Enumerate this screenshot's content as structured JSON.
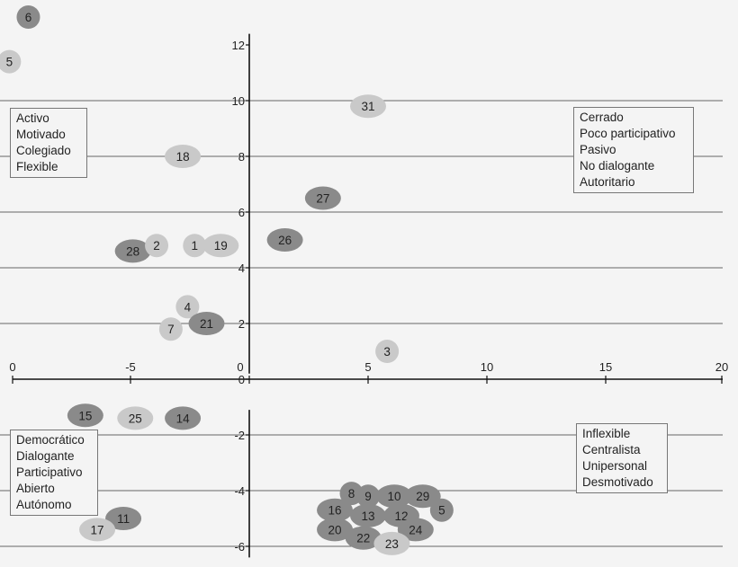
{
  "chart_data": {
    "type": "scatter",
    "x_ticks": [
      "0",
      "-5",
      "0",
      "5",
      "10",
      "15",
      "20"
    ],
    "y_ticks": [
      "12",
      "10",
      "8",
      "6",
      "4",
      "2",
      "0",
      "-2",
      "-4",
      "-6"
    ],
    "xlim": [
      -10,
      20
    ],
    "ylim": [
      -6,
      12
    ],
    "grid": true,
    "colors": {
      "dark": "#8a8a8a",
      "light": "#c9c9c9",
      "grid": "#666666",
      "axis": "#111111"
    },
    "points": [
      {
        "label": "6",
        "x": -9.3,
        "y": 13.0,
        "shade": "dark"
      },
      {
        "label": "5",
        "x": -10.1,
        "y": 11.4,
        "shade": "light"
      },
      {
        "label": "31",
        "x": 5.0,
        "y": 9.8,
        "shade": "light"
      },
      {
        "label": "18",
        "x": -2.8,
        "y": 8.0,
        "shade": "light"
      },
      {
        "label": "27",
        "x": 3.1,
        "y": 6.5,
        "shade": "dark"
      },
      {
        "label": "26",
        "x": 1.5,
        "y": 5.0,
        "shade": "dark"
      },
      {
        "label": "28",
        "x": -4.9,
        "y": 4.6,
        "shade": "dark"
      },
      {
        "label": "2",
        "x": -3.9,
        "y": 4.8,
        "shade": "light"
      },
      {
        "label": "1",
        "x": -2.3,
        "y": 4.8,
        "shade": "light"
      },
      {
        "label": "19",
        "x": -1.2,
        "y": 4.8,
        "shade": "light"
      },
      {
        "label": "4",
        "x": -2.6,
        "y": 2.6,
        "shade": "light"
      },
      {
        "label": "21",
        "x": -1.8,
        "y": 2.0,
        "shade": "dark"
      },
      {
        "label": "7",
        "x": -3.3,
        "y": 1.8,
        "shade": "light"
      },
      {
        "label": "3",
        "x": 5.8,
        "y": 1.0,
        "shade": "light"
      },
      {
        "label": "15",
        "x": -6.9,
        "y": -1.3,
        "shade": "dark"
      },
      {
        "label": "25",
        "x": -4.8,
        "y": -1.4,
        "shade": "light"
      },
      {
        "label": "14",
        "x": -2.8,
        "y": -1.4,
        "shade": "dark"
      },
      {
        "label": "11",
        "x": -5.3,
        "y": -5.0,
        "shade": "dark"
      },
      {
        "label": "17",
        "x": -6.4,
        "y": -5.4,
        "shade": "light"
      },
      {
        "label": "8",
        "x": 4.3,
        "y": -4.1,
        "shade": "dark"
      },
      {
        "label": "9",
        "x": 5.0,
        "y": -4.2,
        "shade": "dark"
      },
      {
        "label": "10",
        "x": 6.1,
        "y": -4.2,
        "shade": "dark"
      },
      {
        "label": "29",
        "x": 7.3,
        "y": -4.2,
        "shade": "dark"
      },
      {
        "label": "16",
        "x": 3.6,
        "y": -4.7,
        "shade": "dark"
      },
      {
        "label": "5",
        "x": 8.1,
        "y": -4.7,
        "shade": "dark"
      },
      {
        "label": "13",
        "x": 5.0,
        "y": -4.9,
        "shade": "dark"
      },
      {
        "label": "12",
        "x": 6.4,
        "y": -4.9,
        "shade": "dark"
      },
      {
        "label": "20",
        "x": 3.6,
        "y": -5.4,
        "shade": "dark"
      },
      {
        "label": "22",
        "x": 4.8,
        "y": -5.7,
        "shade": "dark"
      },
      {
        "label": "24",
        "x": 7.0,
        "y": -5.4,
        "shade": "dark"
      },
      {
        "label": "23",
        "x": 6.0,
        "y": -5.9,
        "shade": "light"
      }
    ]
  },
  "quadrant_boxes": {
    "top_left": [
      "Activo",
      "Motivado",
      "Colegiado",
      "Flexible"
    ],
    "top_right": [
      "Cerrado",
      "Poco participativo",
      "Pasivo",
      "No dialogante",
      "Autoritario"
    ],
    "bottom_left": [
      "Democrático",
      "Dialogante",
      "Participativo",
      "Abierto",
      "Autónomo"
    ],
    "bottom_right": [
      "Inflexible",
      "Centralista",
      "Unipersonal",
      "Desmotivado"
    ]
  }
}
